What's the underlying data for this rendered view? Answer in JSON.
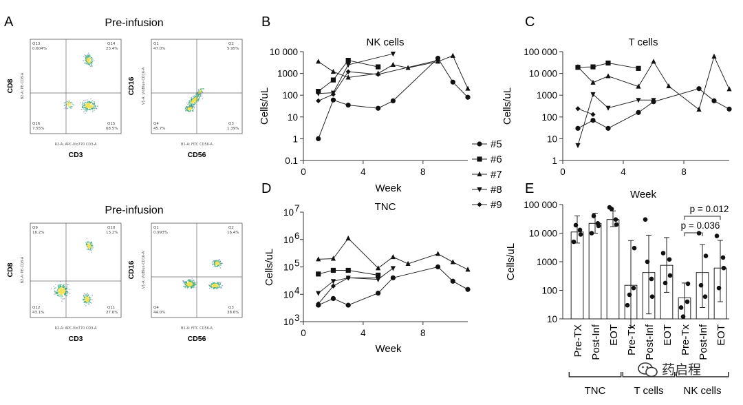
{
  "panel_letters": {
    "a": "A",
    "b": "B",
    "c": "C",
    "d": "D",
    "e": "E"
  },
  "flow": {
    "title_top": "Pre-infusion",
    "title_bottom": "Pre-infusion",
    "plots": [
      {
        "xlabel": "CD3",
        "ylabel": "CD8",
        "xaxis_text": "R2-A: APC-Vio770 CD3-A",
        "yaxis_text": "B2-A: PE-CD8-A",
        "q_tl_name": "Q13",
        "q_tl_val": "0.604%",
        "q_tr_name": "Q14",
        "q_tr_val": "23.4%",
        "q_bl_name": "Q16",
        "q_bl_val": "7.55%",
        "q_br_name": "Q15",
        "q_br_val": "68.5%"
      },
      {
        "xlabel": "CD56",
        "ylabel": "CD16",
        "xaxis_text": "B1-A: FITC CD56-A",
        "yaxis_text": "V1-A: VioBlue-CD16-A",
        "q_tl_name": "Q1",
        "q_tl_val": "47.0%",
        "q_tr_name": "Q2",
        "q_tr_val": "5.95%",
        "q_bl_name": "Q4",
        "q_bl_val": "45.7%",
        "q_br_name": "Q3",
        "q_br_val": "1.39%"
      },
      {
        "xlabel": "CD3",
        "ylabel": "CD8",
        "xaxis_text": "R2-A: APC-Vio770 CD3-A",
        "yaxis_text": "B2-A: PE-CD8-A",
        "q_tl_name": "Q9",
        "q_tl_val": "16.2%",
        "q_tr_name": "Q10",
        "q_tr_val": "13.2%",
        "q_bl_name": "Q12",
        "q_bl_val": "43.1%",
        "q_br_name": "Q11",
        "q_br_val": "27.6%"
      },
      {
        "xlabel": "CD56",
        "ylabel": "CD16",
        "xaxis_text": "B1-A: FITC CD56-A",
        "yaxis_text": "V1-A: VioBlue-CD16-A",
        "q_tl_name": "Q1",
        "q_tl_val": "0.993%",
        "q_tr_name": "Q2",
        "q_tr_val": "16.4%",
        "q_bl_name": "Q4",
        "q_bl_val": "44.0%",
        "q_br_name": "Q3",
        "q_br_val": "38.6%"
      }
    ]
  },
  "legend": {
    "entries": [
      "#5",
      "#6",
      "#7",
      "#8",
      "#9"
    ]
  },
  "watermark": "药启程",
  "colors": {
    "ink": "#1a1a1a",
    "axis": "#333333",
    "flow_hi": "#f2e14b",
    "flow_mid": "#3aa67a",
    "flow_lo": "#6f6fd0"
  },
  "chart_data": [
    {
      "id": "B",
      "type": "line",
      "title": "NK cells",
      "xlabel": "Week",
      "ylabel": "Cells/uL",
      "yscale": "log",
      "ylim": [
        0.1,
        10000
      ],
      "xlim": [
        0,
        11
      ],
      "xticks": [
        0,
        4,
        8
      ],
      "xtick_labels": [
        "0",
        "4",
        "8"
      ],
      "yticks": [
        0.1,
        1,
        10,
        100,
        1000,
        10000
      ],
      "ytick_labels": [
        "0.1",
        "1",
        "10",
        "100",
        "1000",
        "10 000"
      ],
      "series": [
        {
          "name": "#5",
          "marker": "circle",
          "x": [
            1,
            2,
            3,
            5,
            6,
            9,
            10,
            11
          ],
          "y": [
            1,
            60,
            35,
            25,
            55,
            5000,
            400,
            80
          ]
        },
        {
          "name": "#6",
          "marker": "square",
          "x": [
            1,
            2,
            3,
            5
          ],
          "y": [
            150,
            500,
            4000,
            2000
          ]
        },
        {
          "name": "#7",
          "marker": "triangle-up",
          "x": [
            1,
            2,
            3,
            5,
            6,
            7,
            9,
            10,
            11
          ],
          "y": [
            3500,
            1200,
            650,
            1000,
            2500,
            1800,
            3500,
            6500,
            200
          ]
        },
        {
          "name": "#8",
          "marker": "triangle-down",
          "x": [
            1,
            2,
            3,
            6
          ],
          "y": [
            120,
            130,
            2500,
            8000
          ]
        },
        {
          "name": "#9",
          "marker": "diamond",
          "x": [
            1,
            2,
            3,
            5,
            9
          ],
          "y": [
            55,
            110,
            1200,
            900,
            4000
          ]
        }
      ]
    },
    {
      "id": "C",
      "type": "line",
      "title": "T cells",
      "xlabel": "Week",
      "ylabel": "Cells/uL",
      "yscale": "log",
      "ylim": [
        1,
        100000
      ],
      "xlim": [
        0,
        11
      ],
      "xticks": [
        0,
        4,
        8
      ],
      "xtick_labels": [
        "0",
        "4",
        "8"
      ],
      "yticks": [
        1,
        10,
        100,
        1000,
        10000,
        100000
      ],
      "ytick_labels": [
        "1",
        "10",
        "100",
        "1000",
        "10 000",
        "100 000"
      ],
      "series": [
        {
          "name": "#5",
          "marker": "circle",
          "x": [
            1,
            2,
            3,
            5,
            6,
            9,
            10,
            11
          ],
          "y": [
            30,
            70,
            30,
            160,
            500,
            2000,
            550,
            230
          ]
        },
        {
          "name": "#6",
          "marker": "square",
          "x": [
            1,
            2,
            3,
            5
          ],
          "y": [
            19000,
            20000,
            30000,
            17000
          ]
        },
        {
          "name": "#7",
          "marker": "triangle-up",
          "x": [
            1,
            2,
            3,
            5,
            6,
            7,
            9,
            10,
            11
          ],
          "y": [
            20000,
            3800,
            7500,
            2500,
            35000,
            2600,
            220,
            60000,
            1900
          ]
        },
        {
          "name": "#8",
          "marker": "triangle-down",
          "x": [
            1,
            2,
            3,
            5,
            6
          ],
          "y": [
            5,
            1100,
            260,
            600,
            600
          ]
        },
        {
          "name": "#9",
          "marker": "diamond",
          "x": [
            1,
            2
          ],
          "y": [
            240,
            130
          ]
        }
      ]
    },
    {
      "id": "D",
      "type": "line",
      "title": "TNC",
      "xlabel": "Week",
      "ylabel": "Cells/uL",
      "yscale": "log",
      "ylim": [
        1000,
        10000000
      ],
      "xlim": [
        0,
        11
      ],
      "xticks": [
        0,
        4,
        8
      ],
      "xtick_labels": [
        "0",
        "4",
        "8"
      ],
      "yticks": [
        1000,
        10000,
        100000,
        1000000,
        10000000
      ],
      "ytick_labels": [
        "10",
        "10",
        "10",
        "10",
        "10"
      ],
      "ytick_exponents": [
        "3",
        "4",
        "5",
        "6",
        "7"
      ],
      "series": [
        {
          "name": "#5",
          "marker": "circle",
          "x": [
            1,
            2,
            3,
            5,
            6,
            9,
            10,
            11
          ],
          "y": [
            4000,
            7000,
            4000,
            11000,
            40000,
            100000,
            30000,
            15000
          ]
        },
        {
          "name": "#6",
          "marker": "square",
          "x": [
            1,
            2,
            3,
            5
          ],
          "y": [
            55000,
            75000,
            75000,
            50000
          ]
        },
        {
          "name": "#7",
          "marker": "triangle-up",
          "x": [
            1,
            2,
            3,
            5,
            6,
            7,
            9,
            10,
            11
          ],
          "y": [
            190000,
            200000,
            1100000,
            90000,
            230000,
            130000,
            300000,
            150000,
            80000
          ]
        },
        {
          "name": "#8",
          "marker": "triangle-down",
          "x": [
            1,
            2,
            3,
            5,
            6
          ],
          "y": [
            11000,
            30000,
            40000,
            35000,
            90000
          ]
        },
        {
          "name": "#9",
          "marker": "diamond",
          "x": [
            1,
            2,
            3,
            5
          ],
          "y": [
            4500,
            20000,
            40000,
            40000
          ]
        }
      ]
    },
    {
      "id": "E",
      "type": "bar",
      "title": "Week",
      "ylabel": "Cells/uL",
      "yscale": "log",
      "ylim": [
        10,
        100000
      ],
      "yticks": [
        10,
        100,
        1000,
        10000,
        100000
      ],
      "ytick_labels": [
        "10",
        "100",
        "1000",
        "10 000",
        "100 000"
      ],
      "categories": [
        "Pre-TX",
        "Post-Inf",
        "EOT",
        "Pre-Tx",
        "Post-Inf",
        "EOT",
        "Pre-Tx",
        "Post-Inf",
        "EOT"
      ],
      "values": [
        11000,
        22000,
        30000,
        150,
        420,
        750,
        55,
        420,
        600
      ],
      "error_low": [
        4500,
        10000,
        17000,
        5,
        15,
        85,
        10,
        25,
        40
      ],
      "error_high": [
        40000,
        50000,
        60000,
        5500,
        8500,
        7000,
        180,
        4000,
        5600
      ],
      "points": [
        [
          5000,
          9000,
          19000,
          13000
        ],
        [
          10000,
          18000,
          40000,
          22000
        ],
        [
          80000,
          20000,
          70000,
          30000
        ],
        [
          30,
          3000,
          70,
          120
        ],
        [
          30000,
          60,
          1000,
          250
        ],
        [
          2000,
          330,
          180,
          1200
        ],
        [
          25,
          170,
          12,
          40
        ],
        [
          10000,
          1600,
          150,
          60
        ],
        [
          8000,
          600,
          120,
          1400
        ]
      ],
      "groups": [
        {
          "label": "TNC",
          "start": 0,
          "end": 2
        },
        {
          "label": "T cells",
          "start": 3,
          "end": 5
        },
        {
          "label": "NK cells",
          "start": 6,
          "end": 8
        }
      ],
      "annotations": [
        {
          "text": "p = 0.012",
          "from": 6,
          "to": 8
        },
        {
          "text": "p = 0.036",
          "from": 6,
          "to": 7
        }
      ]
    }
  ]
}
